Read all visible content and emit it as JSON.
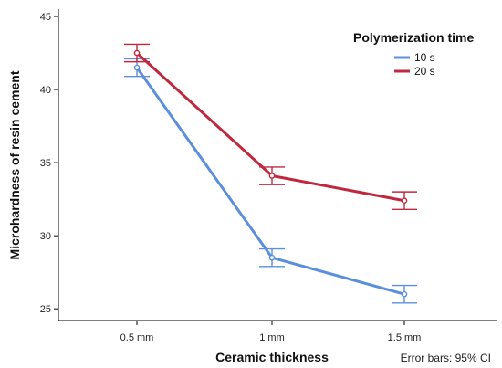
{
  "chart_data": {
    "type": "line",
    "xlabel": "Ceramic thickness",
    "ylabel": "Microhardness of resin cement",
    "categories": [
      "0.5 mm",
      "1 mm",
      "1.5 mm"
    ],
    "yticks": [
      25,
      30,
      35,
      40,
      45
    ],
    "ylim": [
      24.2,
      45.5
    ],
    "legend": {
      "title": "Polymerization time",
      "placement": "top-right"
    },
    "footnote": "Error bars: 95% CI",
    "grid": false,
    "series": [
      {
        "name": "10 s",
        "color": "#5b8fdc",
        "values": [
          41.5,
          28.5,
          26.0
        ],
        "ci_low": [
          40.9,
          27.9,
          25.4
        ],
        "ci_high": [
          42.1,
          29.1,
          26.6
        ]
      },
      {
        "name": "20 s",
        "color": "#c0283e",
        "values": [
          42.5,
          34.1,
          32.4
        ],
        "ci_low": [
          41.9,
          33.5,
          31.8
        ],
        "ci_high": [
          43.1,
          34.7,
          33.0
        ]
      }
    ]
  }
}
